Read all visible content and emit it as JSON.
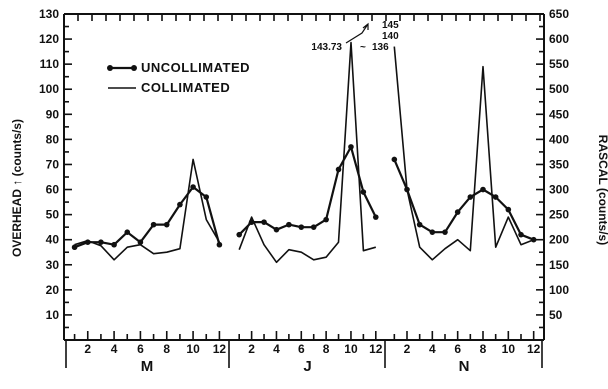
{
  "chart_data": {
    "type": "line",
    "title": "",
    "ylabel_left": "OVERHEAD ↑ (counts/s)",
    "ylabel_right": "RASCAL (counts/s)",
    "ylim_left": [
      0,
      130
    ],
    "ylim_right": [
      0,
      650
    ],
    "yticks_left": [
      10,
      20,
      30,
      40,
      50,
      60,
      70,
      80,
      90,
      100,
      110,
      120,
      130
    ],
    "yticks_right": [
      50,
      100,
      150,
      200,
      250,
      300,
      350,
      400,
      450,
      500,
      550,
      600,
      650
    ],
    "grid": false,
    "legend_position": "upper-left",
    "xtick_labels": [
      "2",
      "4",
      "6",
      "8",
      "10",
      "12"
    ],
    "groups": [
      {
        "label": "M",
        "x": [
          1,
          2,
          3,
          4,
          5,
          6,
          7,
          8,
          9,
          10,
          11,
          12
        ],
        "series": [
          {
            "name": "UNCOLLIMATED",
            "axis": "left",
            "values": [
              37,
              39,
              39,
              38,
              43,
              39,
              46,
              46,
              54,
              61,
              57,
              38
            ]
          },
          {
            "name": "COLLIMATED",
            "axis": "right",
            "values": [
              190,
              198,
              188,
              160,
              185,
              190,
              172,
              175,
              182,
              360,
              240,
              195
            ]
          }
        ]
      },
      {
        "label": "J",
        "x": [
          1,
          2,
          3,
          4,
          5,
          6,
          7,
          8,
          9,
          10,
          11,
          12
        ],
        "series": [
          {
            "name": "UNCOLLIMATED",
            "axis": "left",
            "values": [
              42,
              47,
              47,
              44,
              46,
              45,
              45,
              48,
              68,
              77,
              59,
              49
            ]
          },
          {
            "name": "COLLIMATED",
            "axis": "right",
            "values": [
              180,
              245,
              190,
              155,
              180,
              175,
              160,
              165,
              195,
              593,
              178,
              185
            ]
          }
        ]
      },
      {
        "label": "N",
        "x": [
          1,
          2,
          3,
          4,
          5,
          6,
          7,
          8,
          9,
          10,
          11,
          12
        ],
        "series": [
          {
            "name": "UNCOLLIMATED",
            "axis": "left",
            "values": [
              72,
              60,
              46,
              43,
              43,
              51,
              57,
              60,
              57,
              52,
              42,
              40
            ]
          },
          {
            "name": "COLLIMATED",
            "axis": "right",
            "values": [
              585,
              300,
              185,
              160,
              182,
              200,
              178,
              545,
              185,
              245,
              190,
              200
            ]
          }
        ]
      }
    ],
    "annotations": [
      "145",
      "140",
      "143.73",
      "~",
      "136"
    ]
  }
}
